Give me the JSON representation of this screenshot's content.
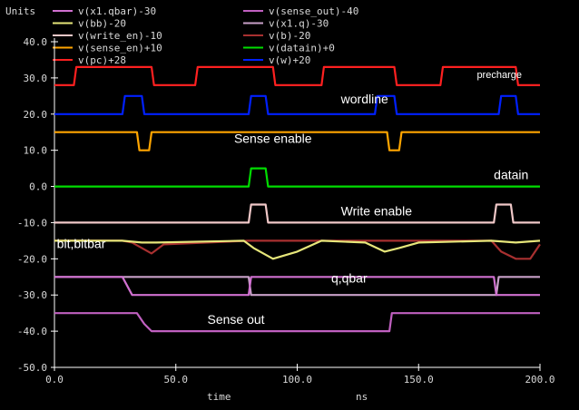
{
  "chart_data": {
    "type": "line",
    "units_label": "Units",
    "xlabel": "time",
    "xunit": "ns",
    "xlim": [
      0,
      200
    ],
    "ylim": [
      -50,
      40
    ],
    "x_ticks": [
      "0.0",
      "50.0",
      "100.0",
      "150.0",
      "200.0"
    ],
    "y_ticks": [
      "40.0",
      "30.0",
      "20.0",
      "10.0",
      "0.0",
      "-10.0",
      "-20.0",
      "-30.0",
      "-40.0",
      "-50.0"
    ],
    "legend": [
      {
        "name": "v(x1.qbar)-30",
        "color": "#d070d0"
      },
      {
        "name": "v(sense_out)-40",
        "color": "#c060c0"
      },
      {
        "name": "v(bb)-20",
        "color": "#e6e67a"
      },
      {
        "name": "v(x1.q)-30",
        "color": "#c8a0c8"
      },
      {
        "name": "v(write_en)-10",
        "color": "#f0c8c8"
      },
      {
        "name": "v(b)-20",
        "color": "#a83030"
      },
      {
        "name": "v(sense_en)+10",
        "color": "#ffa500"
      },
      {
        "name": "v(datain)+0",
        "color": "#00dd00"
      },
      {
        "name": "v(pc)+28",
        "color": "#ff2020"
      },
      {
        "name": "v(w)+20",
        "color": "#0020ff"
      }
    ],
    "annotations": [
      {
        "text": "precharge",
        "x": 174,
        "y": 30
      },
      {
        "text": "wordline",
        "x": 118,
        "y": 23
      },
      {
        "text": "Sense  enable",
        "x": 74,
        "y": 12
      },
      {
        "text": "datain",
        "x": 181,
        "y": 2
      },
      {
        "text": "Write  enable",
        "x": 118,
        "y": -8
      },
      {
        "text": "bit,bitbar",
        "x": 1,
        "y": -17
      },
      {
        "text": "q,qbar",
        "x": 114,
        "y": -26.5
      },
      {
        "text": "Sense  out",
        "x": 63,
        "y": -38
      }
    ],
    "series": [
      {
        "name": "v(pc)+28",
        "color": "#ff2020",
        "x": [
          0,
          8,
          9,
          40,
          41,
          58,
          59,
          90,
          91,
          110,
          111,
          140,
          141,
          159,
          160,
          190,
          191,
          200
        ],
        "y": [
          28,
          28,
          33,
          33,
          28,
          28,
          33,
          33,
          28,
          28,
          33,
          33,
          28,
          28,
          33,
          33,
          28,
          28
        ]
      },
      {
        "name": "v(w)+20",
        "color": "#0020ff",
        "x": [
          0,
          28,
          29,
          36,
          37,
          80,
          81,
          87,
          88,
          132,
          133,
          140,
          141,
          183,
          184,
          190,
          191,
          200
        ],
        "y": [
          20,
          20,
          25,
          25,
          20,
          20,
          25,
          25,
          20,
          20,
          25,
          25,
          20,
          20,
          25,
          25,
          20,
          20
        ]
      },
      {
        "name": "v(sense_en)+10",
        "color": "#ffa500",
        "x": [
          0,
          34,
          35,
          39,
          40,
          137,
          138,
          142,
          143,
          200
        ],
        "y": [
          15,
          15,
          10,
          10,
          15,
          15,
          10,
          10,
          15,
          15
        ]
      },
      {
        "name": "v(datain)+0",
        "color": "#00dd00",
        "x": [
          0,
          80,
          81,
          87,
          88,
          200
        ],
        "y": [
          0,
          0,
          5,
          5,
          0,
          0
        ]
      },
      {
        "name": "v(write_en)-10",
        "color": "#f0c8c8",
        "x": [
          0,
          80,
          81,
          87,
          88,
          181,
          182,
          188,
          189,
          200
        ],
        "y": [
          -10,
          -10,
          -5,
          -5,
          -10,
          -10,
          -5,
          -5,
          -10,
          -10
        ]
      },
      {
        "name": "v(b)-20",
        "color": "#a83030",
        "x": [
          0,
          28,
          32,
          36,
          40,
          45,
          80,
          85,
          92,
          100,
          140,
          180,
          184,
          190,
          196,
          200
        ],
        "y": [
          -15,
          -15,
          -15.5,
          -17,
          -18.5,
          -16,
          -15,
          -15,
          -15,
          -15,
          -15,
          -15,
          -18,
          -20,
          -20,
          -16
        ]
      },
      {
        "name": "v(bb)-20",
        "color": "#e6e67a",
        "x": [
          0,
          28,
          36,
          42,
          78,
          82,
          90,
          100,
          110,
          128,
          136,
          142,
          150,
          180,
          190,
          200
        ],
        "y": [
          -15,
          -15,
          -15.5,
          -15.5,
          -15,
          -17,
          -20,
          -18,
          -15,
          -15.5,
          -18,
          -17,
          -15.5,
          -15,
          -15.5,
          -15
        ]
      },
      {
        "name": "v(x1.q)-30",
        "color": "#c8a0c8",
        "x": [
          0,
          80,
          81,
          182,
          183,
          200
        ],
        "y": [
          -25,
          -25,
          -30,
          -30,
          -25,
          -25
        ]
      },
      {
        "name": "v(x1.qbar)-30",
        "color": "#d070d0",
        "x": [
          0,
          28,
          32,
          36,
          80,
          81,
          180,
          181,
          182,
          183,
          200
        ],
        "y": [
          -25,
          -25,
          -30,
          -30,
          -30,
          -25,
          -25,
          -25,
          -30,
          -30,
          -30
        ]
      },
      {
        "name": "v(sense_out)-40",
        "color": "#c060c0",
        "x": [
          0,
          34,
          37,
          40,
          138,
          139,
          200
        ],
        "y": [
          -35,
          -35,
          -38,
          -40,
          -40,
          -35,
          -35
        ]
      }
    ]
  }
}
